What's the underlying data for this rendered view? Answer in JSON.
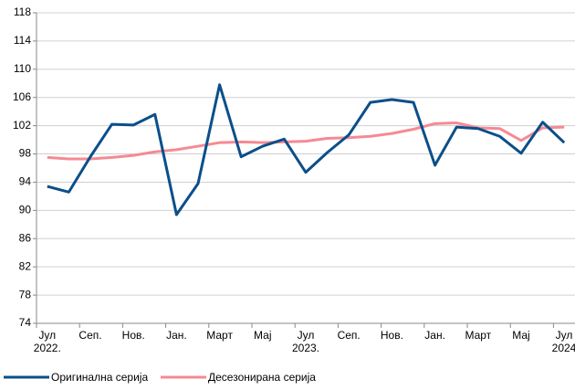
{
  "chart_data": {
    "type": "line",
    "categories": [
      "Јул\n2022.",
      null,
      "Сеп.",
      null,
      "Нов.",
      null,
      "Јан.",
      null,
      "Март",
      null,
      "Мај",
      null,
      "Јул\n2023.",
      null,
      "Сеп.",
      null,
      "Нов.",
      null,
      "Јан.",
      null,
      "Март",
      null,
      "Мај",
      null,
      "Јул\n2024"
    ],
    "series": [
      {
        "name": "Оригинална серија",
        "color": "#0b4f8a",
        "values": [
          93.4,
          92.6,
          97.6,
          102.2,
          102.1,
          103.6,
          89.4,
          93.8,
          107.8,
          97.6,
          99.1,
          100.1,
          95.4,
          98.2,
          100.7,
          105.3,
          105.7,
          105.3,
          96.4,
          101.8,
          101.6,
          100.5,
          98.1,
          102.5,
          99.6
        ]
      },
      {
        "name": "Десезонирана серија",
        "color": "#f58a94",
        "values": [
          97.5,
          97.3,
          97.3,
          97.5,
          97.8,
          98.3,
          98.6,
          99.1,
          99.6,
          99.7,
          99.6,
          99.7,
          99.8,
          100.2,
          100.3,
          100.5,
          100.9,
          101.5,
          102.3,
          102.4,
          101.7,
          101.6,
          99.9,
          101.7,
          101.8
        ]
      }
    ],
    "ylim": [
      74,
      118
    ],
    "yticks": [
      74,
      78,
      82,
      86,
      90,
      94,
      98,
      102,
      106,
      110,
      114,
      118
    ],
    "grid": true,
    "legend": "bottom"
  }
}
